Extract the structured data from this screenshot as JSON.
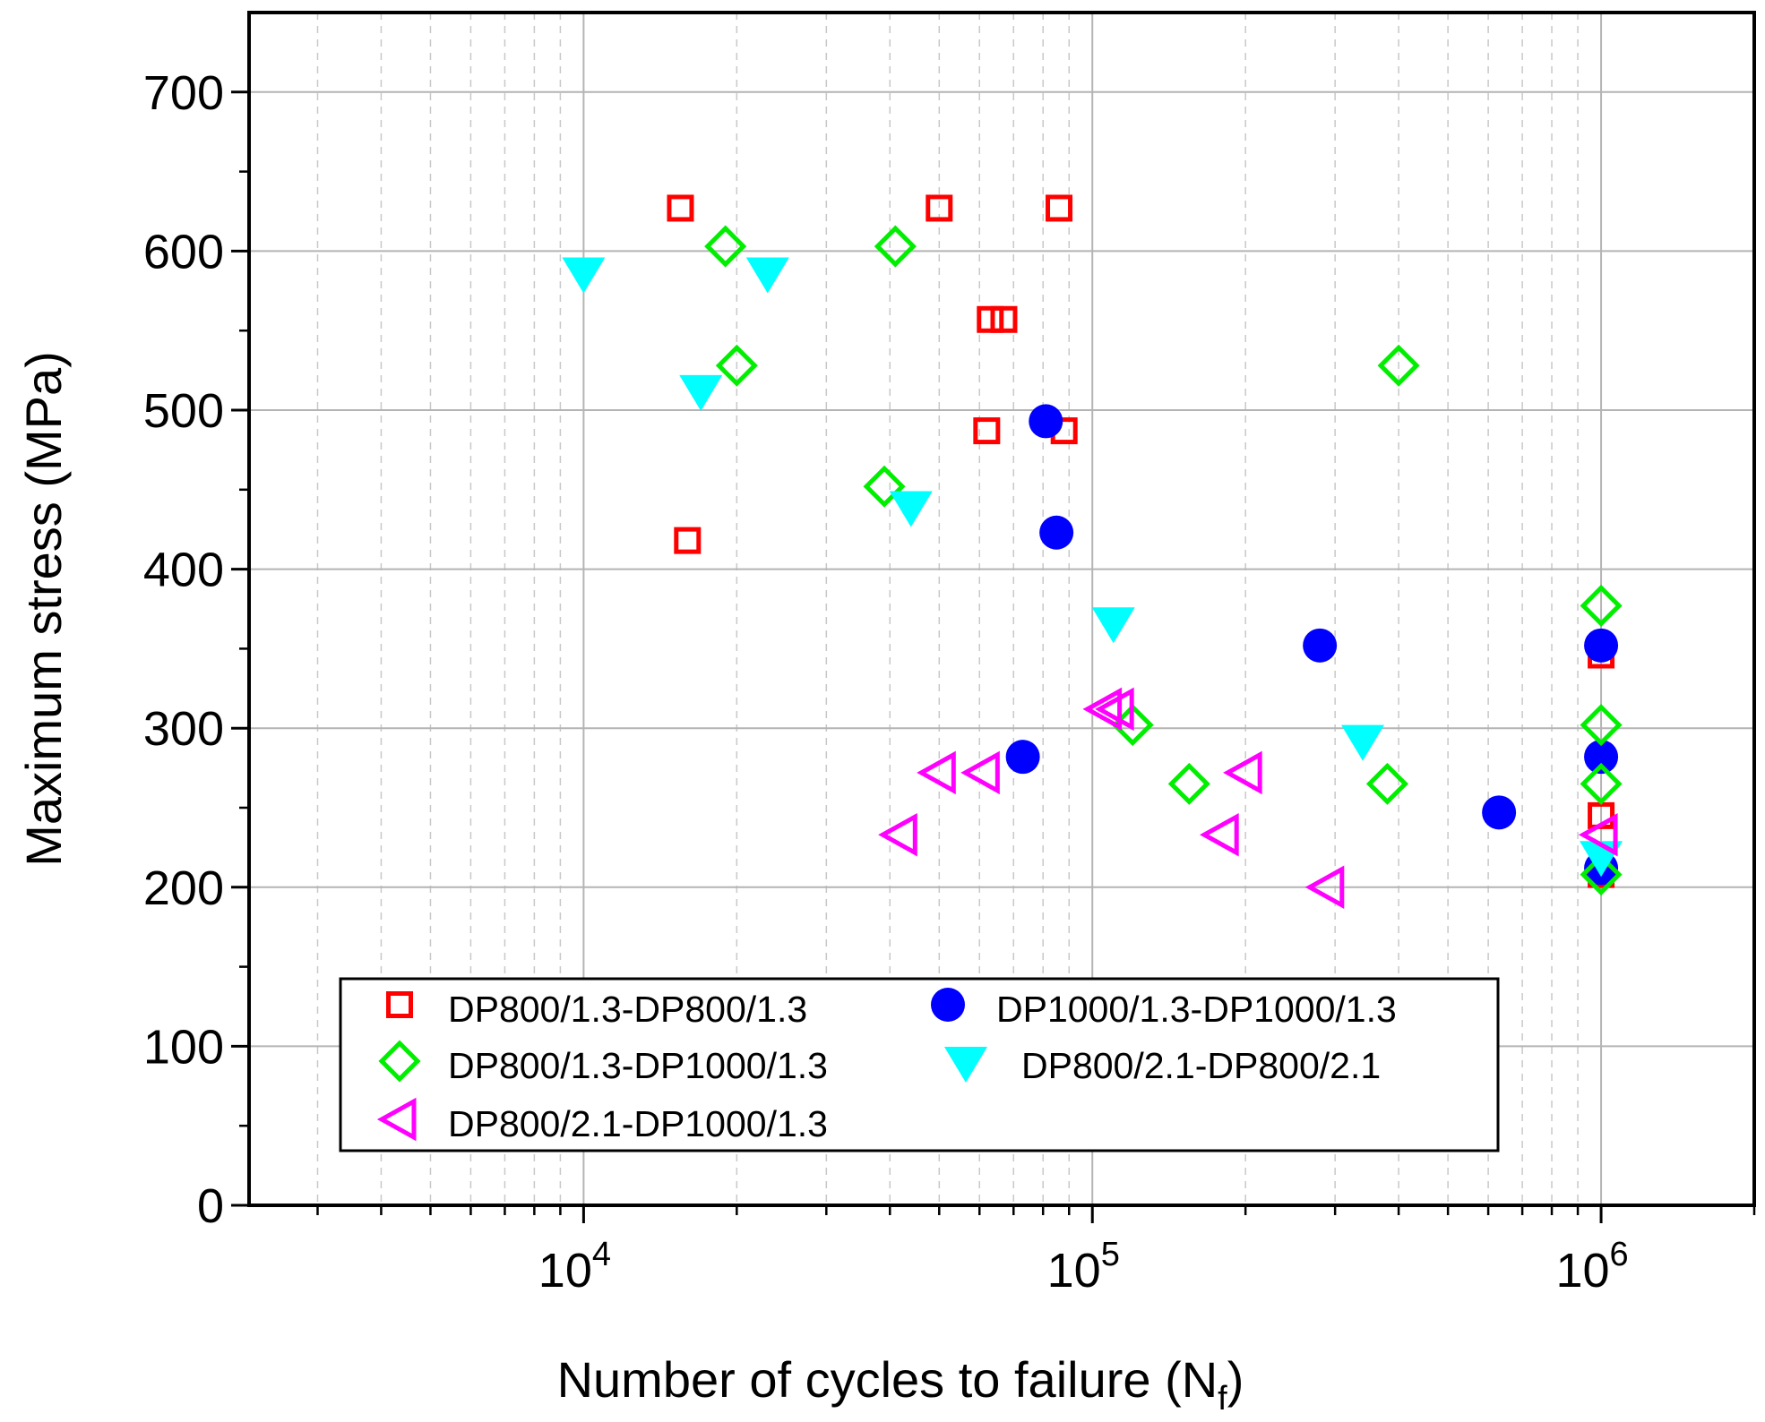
{
  "chart_data": {
    "type": "scatter",
    "title": "",
    "xlabel": "Number of cycles to failure (N",
    "xlabel_subscript": "f",
    "xlabel_close": ")",
    "ylabel": "Maximum stress (MPa)",
    "xscale": "log",
    "xlim": [
      2200,
      2000000
    ],
    "ylim": [
      0,
      750
    ],
    "x_ticks": [
      {
        "value": 10000,
        "base": "10",
        "exp": "4"
      },
      {
        "value": 100000,
        "base": "10",
        "exp": "5"
      },
      {
        "value": 1000000,
        "base": "10",
        "exp": "6"
      }
    ],
    "y_ticks": [
      0,
      100,
      200,
      300,
      400,
      500,
      600,
      700
    ],
    "grid": true,
    "legend_position": "bottom-left",
    "series": [
      {
        "name": "DP800/1.3-DP800/1.3",
        "marker": "square-open",
        "color": "#ff0000",
        "points": [
          [
            15500,
            627
          ],
          [
            50000,
            627
          ],
          [
            86000,
            627
          ],
          [
            63000,
            557
          ],
          [
            67000,
            557
          ],
          [
            62000,
            487
          ],
          [
            88000,
            487
          ],
          [
            16000,
            418
          ],
          [
            1000000,
            346
          ],
          [
            1000000,
            245
          ],
          [
            1000000,
            208
          ]
        ]
      },
      {
        "name": "DP1000/1.3-DP1000/1.3",
        "marker": "circle-filled",
        "color": "#0000ff",
        "points": [
          [
            81000,
            493
          ],
          [
            85000,
            423
          ],
          [
            280000,
            352
          ],
          [
            73000,
            282
          ],
          [
            630000,
            247
          ],
          [
            1000000,
            352
          ],
          [
            1000000,
            282
          ],
          [
            1000000,
            212
          ]
        ]
      },
      {
        "name": "DP800/1.3-DP1000/1.3",
        "marker": "diamond-open",
        "color": "#00ee00",
        "points": [
          [
            19000,
            603
          ],
          [
            41000,
            603
          ],
          [
            20000,
            528
          ],
          [
            400000,
            528
          ],
          [
            39000,
            452
          ],
          [
            120000,
            302
          ],
          [
            155000,
            265
          ],
          [
            380000,
            265
          ],
          [
            1000000,
            377
          ],
          [
            1000000,
            302
          ],
          [
            1000000,
            265
          ],
          [
            1000000,
            208
          ]
        ]
      },
      {
        "name": "DP800/2.1-DP800/2.1",
        "marker": "triangle-down-filled",
        "color": "#00ffff",
        "points": [
          [
            10000,
            587
          ],
          [
            23000,
            587
          ],
          [
            17000,
            513
          ],
          [
            44000,
            440
          ],
          [
            110000,
            367
          ],
          [
            340000,
            293
          ],
          [
            1000000,
            220
          ]
        ]
      },
      {
        "name": "DP800/2.1-DP1000/1.3",
        "marker": "triangle-left-open",
        "color": "#ff00ff",
        "points": [
          [
            106000,
            312
          ],
          [
            112000,
            312
          ],
          [
            50000,
            272
          ],
          [
            61000,
            272
          ],
          [
            200000,
            272
          ],
          [
            42000,
            233
          ],
          [
            180000,
            233
          ],
          [
            290000,
            200
          ],
          [
            1000000,
            233
          ]
        ]
      }
    ]
  }
}
